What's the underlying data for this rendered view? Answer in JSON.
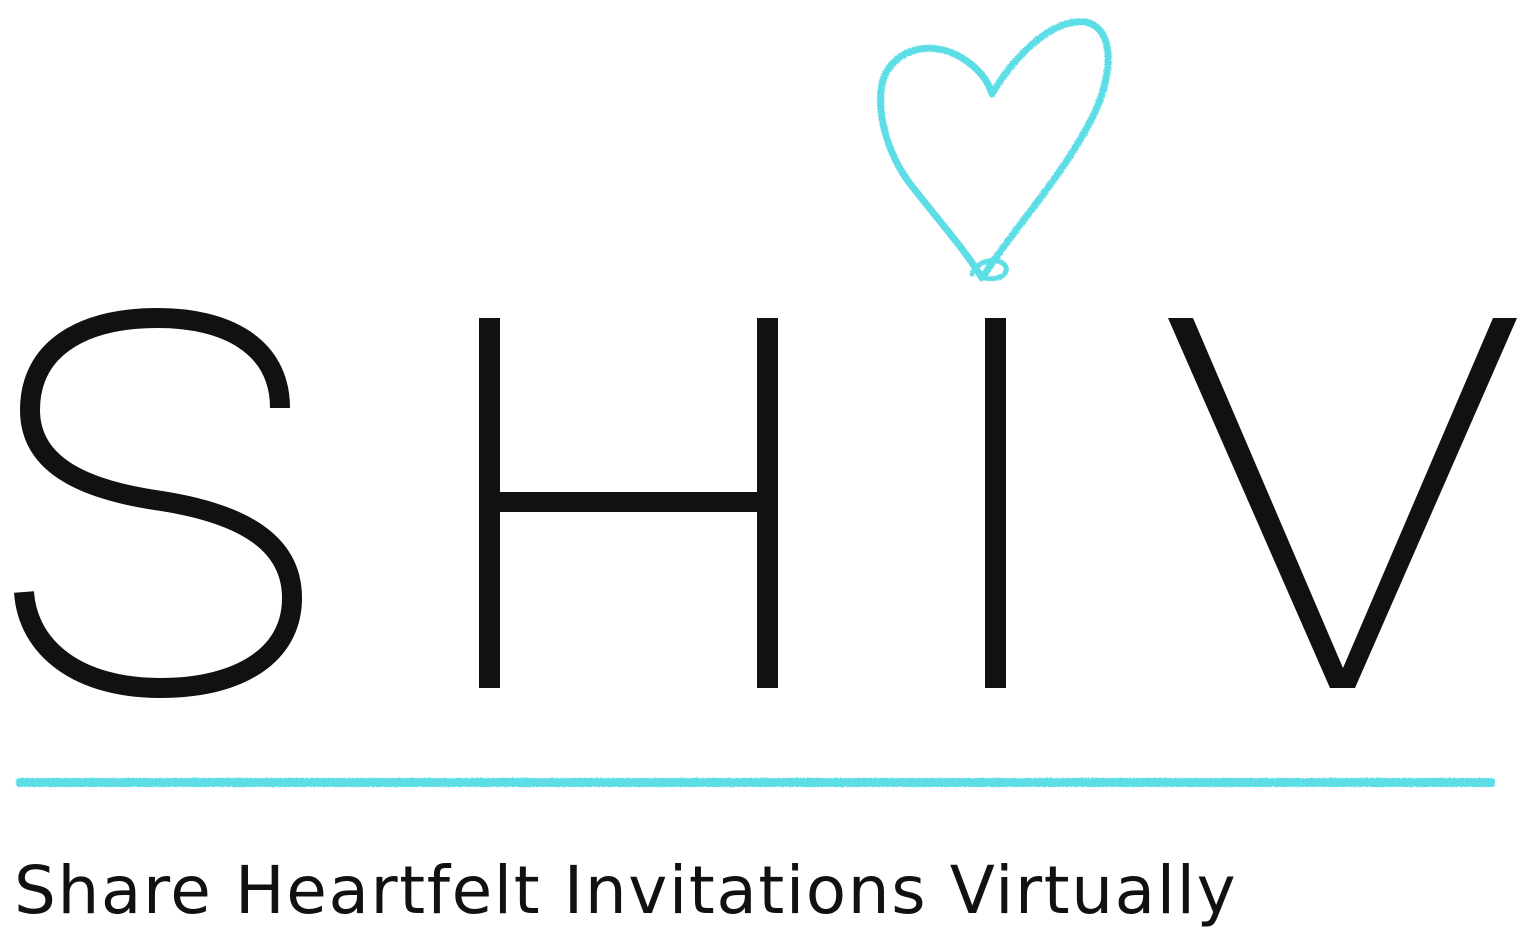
{
  "logo": {
    "wordmark": "SHIV",
    "tagline": "Share Heartfelt Invitations Virtually",
    "colors": {
      "ink": "#111111",
      "accent": "#5ddde6",
      "background": "#ffffff"
    },
    "icons": [
      "heart-icon"
    ]
  }
}
